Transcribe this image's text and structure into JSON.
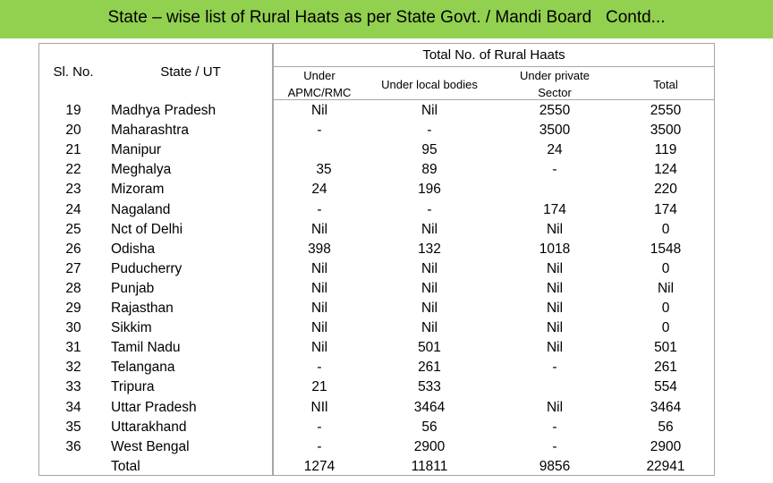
{
  "title": "State – wise list of Rural Haats as per State Govt. / Mandi Board   Contd...",
  "group_header": "Total No. of Rural Haats",
  "columns": {
    "sl_no": "Sl. No.",
    "state": "State / UT",
    "apmc": [
      "Under",
      "APMC/RMC"
    ],
    "local": "Under local bodies",
    "private": [
      "Under private",
      "Sector"
    ],
    "total": "Total"
  },
  "rows": [
    {
      "sl": "19",
      "state": "Madhya Pradesh",
      "apmc": "Nil",
      "local": "Nil",
      "private": "2550",
      "total": "2550"
    },
    {
      "sl": "20",
      "state": "Maharashtra",
      "apmc": "-",
      "local": "-",
      "private": "3500",
      "total": "3500"
    },
    {
      "sl": "21",
      "state": "Manipur",
      "apmc": "",
      "local": "95",
      "private": "24",
      "total": "119"
    },
    {
      "sl": "22",
      "state": "Meghalya",
      "apmc": "35",
      "local": "89",
      "private": "-",
      "total": "124"
    },
    {
      "sl": "23",
      "state": "Mizoram",
      "apmc": "24",
      "local": "196",
      "private": "",
      "total": "220"
    },
    {
      "sl": "24",
      "state": "Nagaland",
      "apmc": "-",
      "local": "-",
      "private": "174",
      "total": "174"
    },
    {
      "sl": "25",
      "state": "Nct of Delhi",
      "apmc": "Nil",
      "local": "Nil",
      "private": "Nil",
      "total": "0"
    },
    {
      "sl": "26",
      "state": "Odisha",
      "apmc": "398",
      "local": "132",
      "private": "1018",
      "total": "1548"
    },
    {
      "sl": "27",
      "state": "Puducherry",
      "apmc": "Nil",
      "local": "Nil",
      "private": "Nil",
      "total": "0"
    },
    {
      "sl": "28",
      "state": "Punjab",
      "apmc": "Nil",
      "local": "Nil",
      "private": "Nil",
      "total": "Nil"
    },
    {
      "sl": "29",
      "state": "Rajasthan",
      "apmc": "Nil",
      "local": "Nil",
      "private": "Nil",
      "total": "0"
    },
    {
      "sl": "30",
      "state": "Sikkim",
      "apmc": "Nil",
      "local": "Nil",
      "private": "Nil",
      "total": "0"
    },
    {
      "sl": "31",
      "state": "Tamil Nadu",
      "apmc": "Nil",
      "local": "501",
      "private": "Nil",
      "total": "501"
    },
    {
      "sl": "32",
      "state": "Telangana",
      "apmc": "-",
      "local": "261",
      "private": "-",
      "total": "261"
    },
    {
      "sl": "33",
      "state": "Tripura",
      "apmc": "21",
      "local": "533",
      "private": "",
      "total": "554"
    },
    {
      "sl": "34",
      "state": "Uttar Pradesh",
      "apmc": "NIl",
      "local": "3464",
      "private": "Nil",
      "total": "3464"
    },
    {
      "sl": "35",
      "state": "Uttarakhand",
      "apmc": "-",
      "local": "56",
      "private": "-",
      "total": "56"
    },
    {
      "sl": "36",
      "state": "West Bengal",
      "apmc": "-",
      "local": "2900",
      "private": "-",
      "total": "2900"
    },
    {
      "sl": "",
      "state": "Total",
      "apmc": "1274",
      "local": "11811",
      "private": "9856",
      "total": "22941"
    }
  ]
}
